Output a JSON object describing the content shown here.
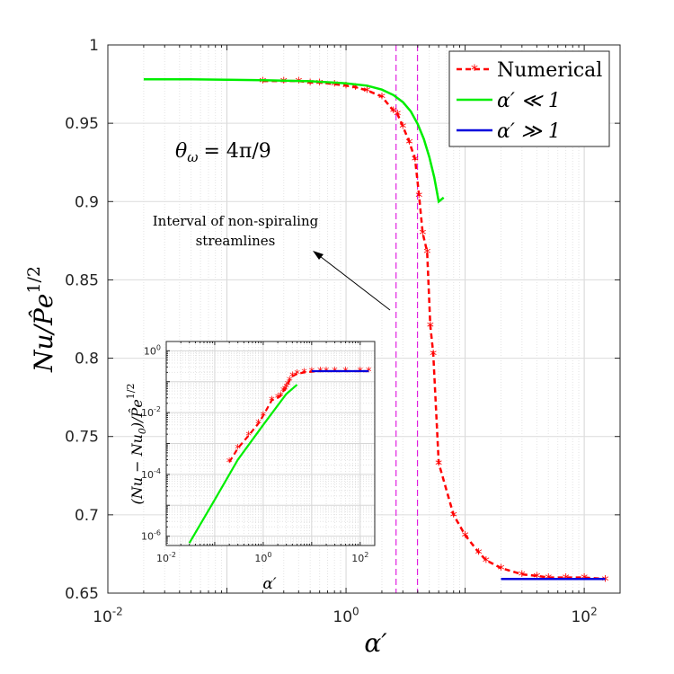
{
  "chart_data": [
    {
      "type": "line",
      "xscale": "log",
      "xlim": [
        0.01,
        200
      ],
      "ylim": [
        0.65,
        1.0
      ],
      "xlabel": "α′",
      "ylabel": "Nu/P̂e^1/2",
      "ylabel_main": "Nu/P̂e",
      "ylabel_exp": "1/2",
      "x_tick_labels": [
        {
          "base": "10",
          "exp": "-2",
          "value": 0.01
        },
        {
          "base": "10",
          "exp": "0",
          "value": 1
        },
        {
          "base": "10",
          "exp": "2",
          "value": 100
        }
      ],
      "y_ticks": [
        0.65,
        0.7,
        0.75,
        0.8,
        0.85,
        0.9,
        0.95,
        1.0
      ],
      "y_tick_labels": [
        "0.65",
        "0.7",
        "0.75",
        "0.8",
        "0.85",
        "0.9",
        "0.95",
        "1"
      ],
      "grid": true,
      "legend_position": "top-right",
      "legend": [
        "Numerical",
        "α′ ≪ 1",
        "α′ ≫ 1"
      ],
      "annotation_theta": "θω = 4π/9",
      "annotation_theta_sym": "θ",
      "annotation_theta_sub": "ω",
      "annotation_theta_rhs": "= 4π/9",
      "annotation_interval_line1": "Interval of non-spiraling",
      "annotation_interval_line2": "streamlines",
      "vertical_lines": [
        2.63,
        3.98
      ],
      "series": [
        {
          "name": "Numerical",
          "color": "#ff0000",
          "style": "dashed-star",
          "x": [
            0.2,
            0.3,
            0.4,
            0.5,
            0.6,
            0.8,
            1.0,
            1.2,
            1.5,
            2.0,
            2.5,
            2.7,
            3.0,
            3.4,
            3.8,
            4.1,
            4.4,
            4.8,
            5.1,
            5.4,
            6.0,
            8.0,
            10.0,
            13.0,
            15.0,
            20.0,
            30.0,
            40.0,
            50.0,
            70.0,
            100.0,
            150.0
          ],
          "y": [
            0.977,
            0.977,
            0.977,
            0.976,
            0.976,
            0.975,
            0.974,
            0.973,
            0.971,
            0.967,
            0.958,
            0.956,
            0.948,
            0.938,
            0.927,
            0.904,
            0.88,
            0.868,
            0.821,
            0.803,
            0.733,
            0.7,
            0.687,
            0.676,
            0.671,
            0.666,
            0.662,
            0.661,
            0.66,
            0.66,
            0.66,
            0.659
          ]
        },
        {
          "name": "α′ ≪ 1",
          "color": "#00ee00",
          "style": "solid",
          "x": [
            0.02,
            0.05,
            0.1,
            0.2,
            0.5,
            1.0,
            1.5,
            2.0,
            2.5,
            3.0,
            3.5,
            4.0,
            4.5,
            5.0,
            5.5,
            6.0,
            6.6
          ],
          "y": [
            0.978,
            0.978,
            0.9778,
            0.9775,
            0.9768,
            0.9755,
            0.974,
            0.9715,
            0.968,
            0.9635,
            0.9575,
            0.9495,
            0.94,
            0.9285,
            0.9155,
            0.9,
            0.9025
          ]
        },
        {
          "name": "α′ ≫ 1",
          "color": "#0000dd",
          "style": "solid",
          "x": [
            20,
            50,
            100,
            150
          ],
          "y": [
            0.659,
            0.659,
            0.659,
            0.659
          ]
        }
      ]
    },
    {
      "type": "line",
      "xscale": "log",
      "yscale": "log",
      "xlim": [
        0.01,
        200
      ],
      "ylim": [
        5e-07,
        2
      ],
      "xlabel": "α′",
      "ylabel": "(Nu − Nu0)/P̂e^1/2",
      "ylabel_main": "(Nu − Nu",
      "ylabel_sub": "0",
      "ylabel_close": ")/P̂e",
      "ylabel_exp": "1/2",
      "x_tick_labels": [
        {
          "base": "10",
          "exp": "-2",
          "value": 0.01
        },
        {
          "base": "10",
          "exp": "0",
          "value": 1
        },
        {
          "base": "10",
          "exp": "2",
          "value": 100
        }
      ],
      "y_tick_labels": [
        {
          "base": "10",
          "exp": "-6",
          "value": 1e-06
        },
        {
          "base": "10",
          "exp": "-4",
          "value": 0.0001
        },
        {
          "base": "10",
          "exp": "-2",
          "value": 0.01
        },
        {
          "base": "10",
          "exp": "0",
          "value": 1
        }
      ],
      "grid": true,
      "series": [
        {
          "name": "Numerical",
          "color": "#ff0000",
          "style": "dashed-star",
          "x": [
            0.2,
            0.3,
            0.5,
            0.8,
            1.0,
            1.5,
            2.0,
            2.3,
            2.6,
            2.8,
            3.0,
            3.2,
            3.5,
            4.0,
            5.0,
            7.0,
            10.0,
            15.0,
            20.0,
            30.0,
            50.0,
            100.0,
            150.0
          ],
          "y": [
            0.00025,
            0.0007,
            0.0018,
            0.0045,
            0.008,
            0.025,
            0.03,
            0.035,
            0.05,
            0.055,
            0.065,
            0.08,
            0.11,
            0.15,
            0.18,
            0.2,
            0.21,
            0.22,
            0.22,
            0.22,
            0.22,
            0.22,
            0.22
          ]
        },
        {
          "name": "α′ ≪ 1",
          "color": "#00ee00",
          "style": "solid",
          "x": [
            0.03,
            0.1,
            0.3,
            1.0,
            3.0,
            5.0
          ],
          "y": [
            6e-07,
            1.5e-05,
            0.0003,
            0.004,
            0.04,
            0.08
          ]
        },
        {
          "name": "α′ ≫ 1",
          "color": "#0000dd",
          "style": "solid",
          "x": [
            10,
            30,
            100,
            150
          ],
          "y": [
            0.22,
            0.22,
            0.22,
            0.22
          ]
        }
      ]
    }
  ]
}
